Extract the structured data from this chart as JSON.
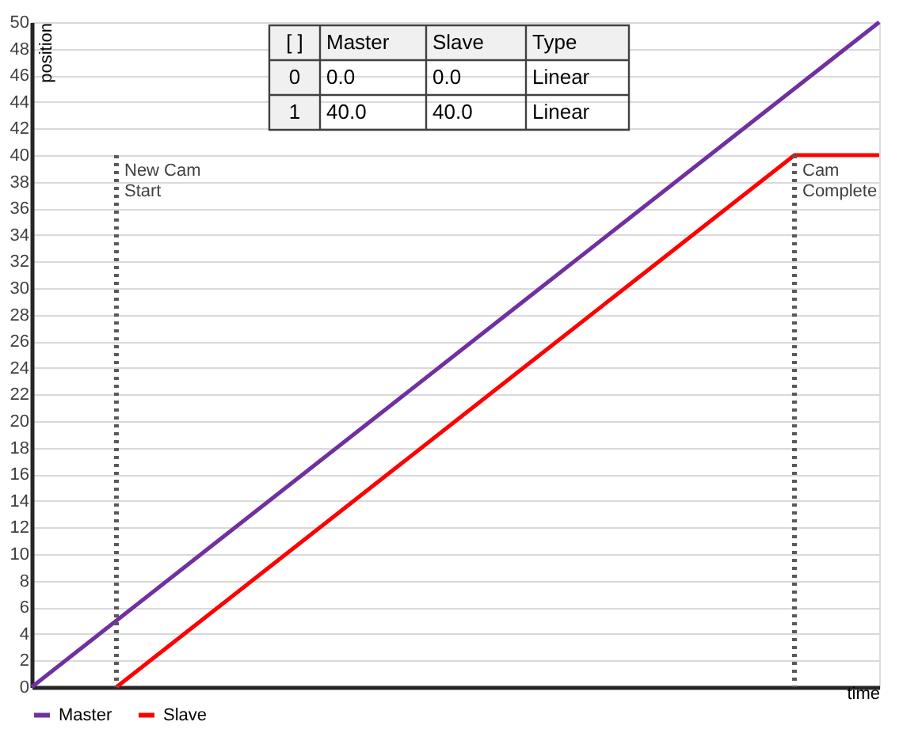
{
  "chart_data": {
    "type": "line",
    "xlabel": "time",
    "ylabel": "position",
    "categories": [
      null,
      null,
      null,
      null,
      null,
      null,
      null,
      null,
      null,
      null,
      null
    ],
    "ylim": [
      0,
      50
    ],
    "yticks": [
      0,
      2,
      4,
      6,
      8,
      10,
      12,
      14,
      16,
      18,
      20,
      22,
      24,
      26,
      28,
      30,
      32,
      34,
      36,
      38,
      40,
      42,
      44,
      46,
      48,
      50
    ],
    "tick_labels": "y",
    "grid": "y",
    "legend": "bottom",
    "line_style": "solid",
    "marker": "none",
    "series": [
      {
        "name": "Master",
        "color": "#7030a0",
        "values": [
          0,
          5,
          10,
          15,
          20,
          25,
          30,
          35,
          40,
          45,
          50
        ]
      },
      {
        "name": "Slave",
        "color": "#ff0000",
        "values": [
          null,
          0,
          5,
          10,
          15,
          20,
          25,
          30,
          35,
          40,
          40
        ]
      }
    ],
    "ref_lines": [
      {
        "axis": "x",
        "label": "New Cam\nStart",
        "color": "#595959",
        "line_style": "dotted"
      },
      {
        "axis": "x",
        "label": "Cam\nComplete",
        "color": "#595959",
        "line_style": "dotted"
      }
    ],
    "annotations": [
      "[ ]",
      "Master",
      "Slave",
      "Type",
      "0",
      "0.0",
      "0.0",
      "Linear",
      "1",
      "40.0",
      "40.0",
      "Linear"
    ]
  }
}
